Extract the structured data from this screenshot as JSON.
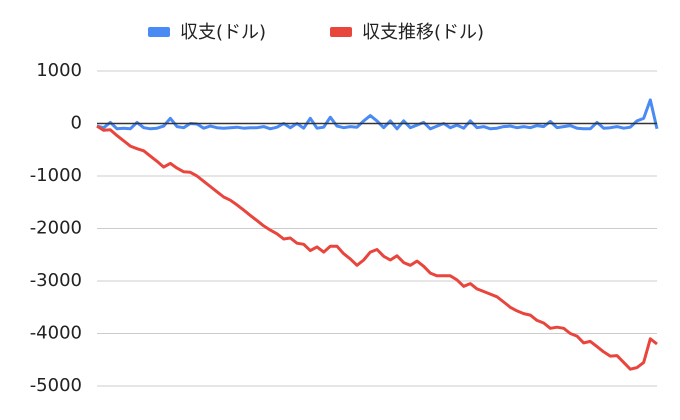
{
  "chart_data": {
    "type": "line",
    "series": [
      {
        "name": "収支(ドル)",
        "color": "#4a8af4",
        "values": [
          -50,
          -80,
          20,
          -100,
          -90,
          -100,
          20,
          -80,
          -100,
          -90,
          -50,
          100,
          -60,
          -80,
          0,
          -10,
          -90,
          -50,
          -80,
          -90,
          -80,
          -70,
          -90,
          -80,
          -80,
          -60,
          -100,
          -70,
          0,
          -80,
          0,
          -90,
          100,
          -90,
          -70,
          120,
          -50,
          -80,
          -60,
          -70,
          50,
          150,
          50,
          -80,
          50,
          -100,
          50,
          -80,
          -30,
          20,
          -100,
          -50,
          0,
          -80,
          -30,
          -90,
          50,
          -80,
          -60,
          -100,
          -90,
          -60,
          -50,
          -80,
          -60,
          -80,
          -40,
          -60,
          40,
          -80,
          -60,
          -40,
          -90,
          -100,
          -100,
          20,
          -90,
          -80,
          -60,
          -90,
          -70,
          50,
          100,
          450,
          -100
        ]
      },
      {
        "name": "収支推移(ドル)",
        "color": "#e8453c",
        "values": [
          -50,
          -130,
          -120,
          -230,
          -330,
          -430,
          -480,
          -520,
          -620,
          -720,
          -830,
          -760,
          -850,
          -920,
          -930,
          -1000,
          -1100,
          -1200,
          -1300,
          -1400,
          -1460,
          -1550,
          -1650,
          -1750,
          -1850,
          -1950,
          -2030,
          -2100,
          -2200,
          -2180,
          -2280,
          -2300,
          -2420,
          -2350,
          -2450,
          -2340,
          -2340,
          -2480,
          -2580,
          -2700,
          -2600,
          -2450,
          -2400,
          -2530,
          -2600,
          -2520,
          -2650,
          -2700,
          -2620,
          -2720,
          -2850,
          -2900,
          -2900,
          -2900,
          -2980,
          -3100,
          -3050,
          -3150,
          -3200,
          -3250,
          -3300,
          -3400,
          -3500,
          -3570,
          -3620,
          -3650,
          -3750,
          -3800,
          -3900,
          -3880,
          -3900,
          -4000,
          -4050,
          -4180,
          -4150,
          -4250,
          -4350,
          -4430,
          -4420,
          -4550,
          -4680,
          -4650,
          -4550,
          -4100,
          -4200
        ]
      }
    ],
    "ylim": [
      -5000,
      1000
    ],
    "yticks": [
      1000,
      0,
      -1000,
      -2000,
      -3000,
      -4000,
      -5000
    ],
    "grid": true
  }
}
